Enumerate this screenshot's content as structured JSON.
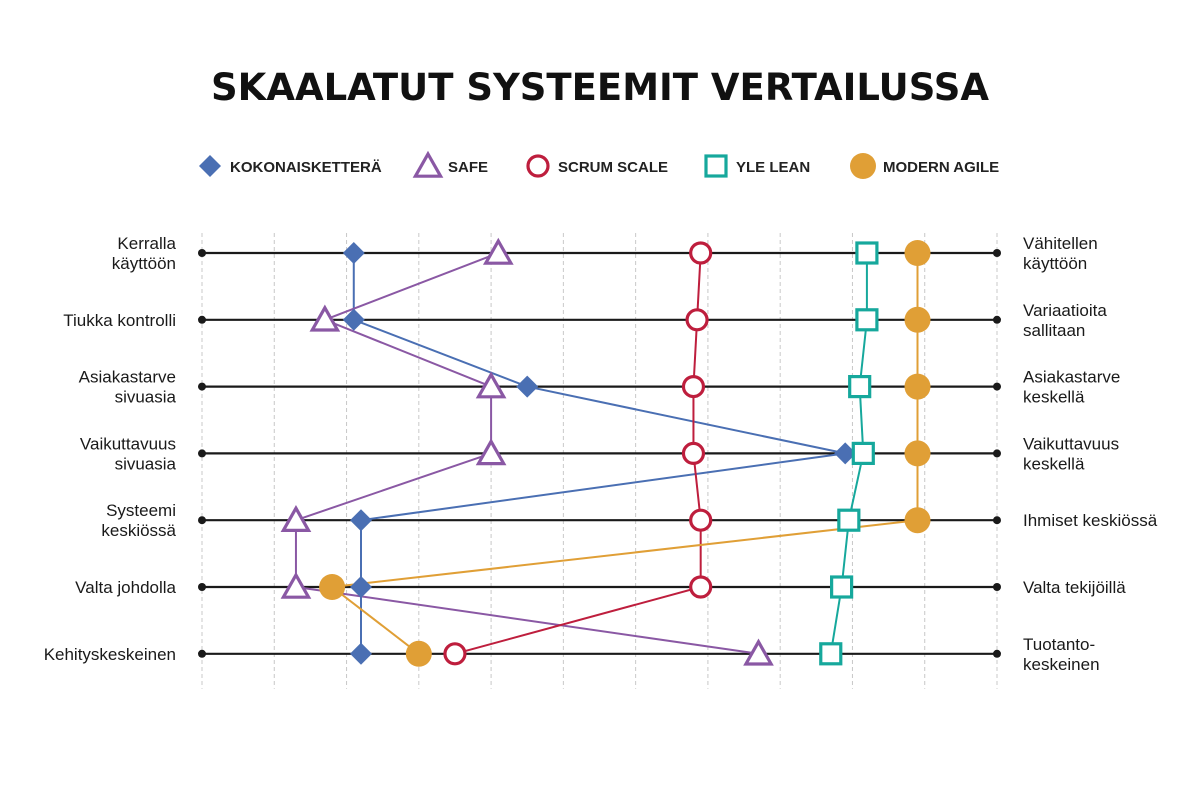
{
  "chart_data": {
    "type": "line",
    "title": "SKAALATUT SYSTEEMIT VERTAILUSSA",
    "xlim": [
      0,
      11
    ],
    "rows": [
      {
        "left": [
          "Kerralla",
          "käyttöön"
        ],
        "right": [
          "Vähitellen",
          "käyttöön"
        ]
      },
      {
        "left": [
          "Tiukka kontrolli"
        ],
        "right": [
          "Variaatioita",
          "sallitaan"
        ]
      },
      {
        "left": [
          "Asiakastarve",
          "sivuasia"
        ],
        "right": [
          "Asiakastarve",
          "keskellä"
        ]
      },
      {
        "left": [
          "Vaikuttavuus",
          "sivuasia"
        ],
        "right": [
          "Vaikuttavuus",
          "keskellä"
        ]
      },
      {
        "left": [
          "Systeemi",
          "keskiössä"
        ],
        "right": [
          "Ihmiset keskiössä"
        ]
      },
      {
        "left": [
          "Valta johdolla"
        ],
        "right": [
          "Valta tekijöillä"
        ]
      },
      {
        "left": [
          "Kehityskeskeinen"
        ],
        "right": [
          "Tuotanto-",
          "keskeinen"
        ]
      }
    ],
    "series": [
      {
        "name": "KOKONAISKETTERÄ",
        "marker": "diamond",
        "color": "#4a6fb3",
        "values": [
          2.1,
          2.1,
          4.5,
          8.9,
          2.2,
          2.2,
          2.2
        ]
      },
      {
        "name": "SAFE",
        "marker": "triangle",
        "color": "#8a58a4",
        "values": [
          4.1,
          1.7,
          4.0,
          4.0,
          1.3,
          1.3,
          7.7
        ]
      },
      {
        "name": "SCRUM SCALE",
        "marker": "circle-open",
        "color": "#be1e3d",
        "values": [
          6.9,
          6.85,
          6.8,
          6.8,
          6.9,
          6.9,
          3.5
        ]
      },
      {
        "name": "YLE LEAN",
        "marker": "square",
        "color": "#16a89c",
        "values": [
          9.2,
          9.2,
          9.1,
          9.15,
          8.95,
          8.85,
          8.7
        ]
      },
      {
        "name": "MODERN AGILE",
        "marker": "circle-filled",
        "color": "#e09f36",
        "values": [
          9.9,
          9.9,
          9.9,
          9.9,
          9.9,
          1.8,
          3.0
        ]
      }
    ]
  }
}
